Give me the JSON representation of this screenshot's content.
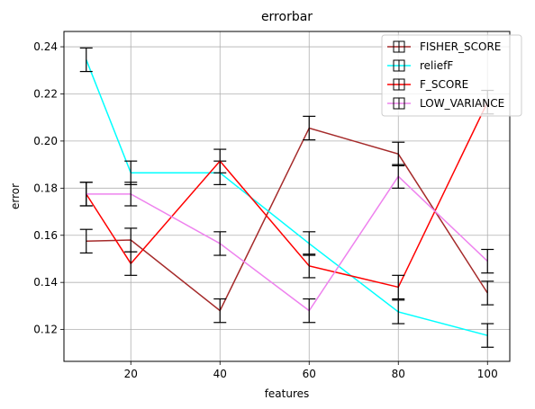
{
  "chart_data": {
    "type": "line",
    "title": "errorbar",
    "xlabel": "features",
    "ylabel": "error",
    "x": [
      10,
      20,
      40,
      60,
      80,
      100
    ],
    "xlim": [
      5,
      105
    ],
    "ylim": [
      0.1065,
      0.2465
    ],
    "x_ticks": [
      20,
      40,
      60,
      80,
      100
    ],
    "y_ticks": [
      0.12,
      0.14,
      0.16,
      0.18,
      0.2,
      0.22,
      0.24
    ],
    "y_tick_labels": [
      "0.12",
      "0.14",
      "0.16",
      "0.18",
      "0.20",
      "0.22",
      "0.24"
    ],
    "error_halfwidth": 0.005,
    "grid": true,
    "legend_position": "top-right",
    "series": [
      {
        "name": "FISHER_SCORE",
        "color": "#a52a2a",
        "values": [
          0.1575,
          0.158,
          0.128,
          0.2055,
          0.1945,
          0.1355
        ]
      },
      {
        "name": "reliefF",
        "color": "#00ffff",
        "values": [
          0.2345,
          0.1865,
          0.1865,
          0.1565,
          0.1275,
          0.1175
        ]
      },
      {
        "name": "F_SCORE",
        "color": "#ff0000",
        "values": [
          0.1775,
          0.148,
          0.1915,
          0.147,
          0.138,
          0.2165
        ]
      },
      {
        "name": "LOW_VARIANCE",
        "color": "#ee82ee",
        "values": [
          0.1775,
          0.1775,
          0.1565,
          0.128,
          0.185,
          0.149
        ]
      }
    ]
  }
}
